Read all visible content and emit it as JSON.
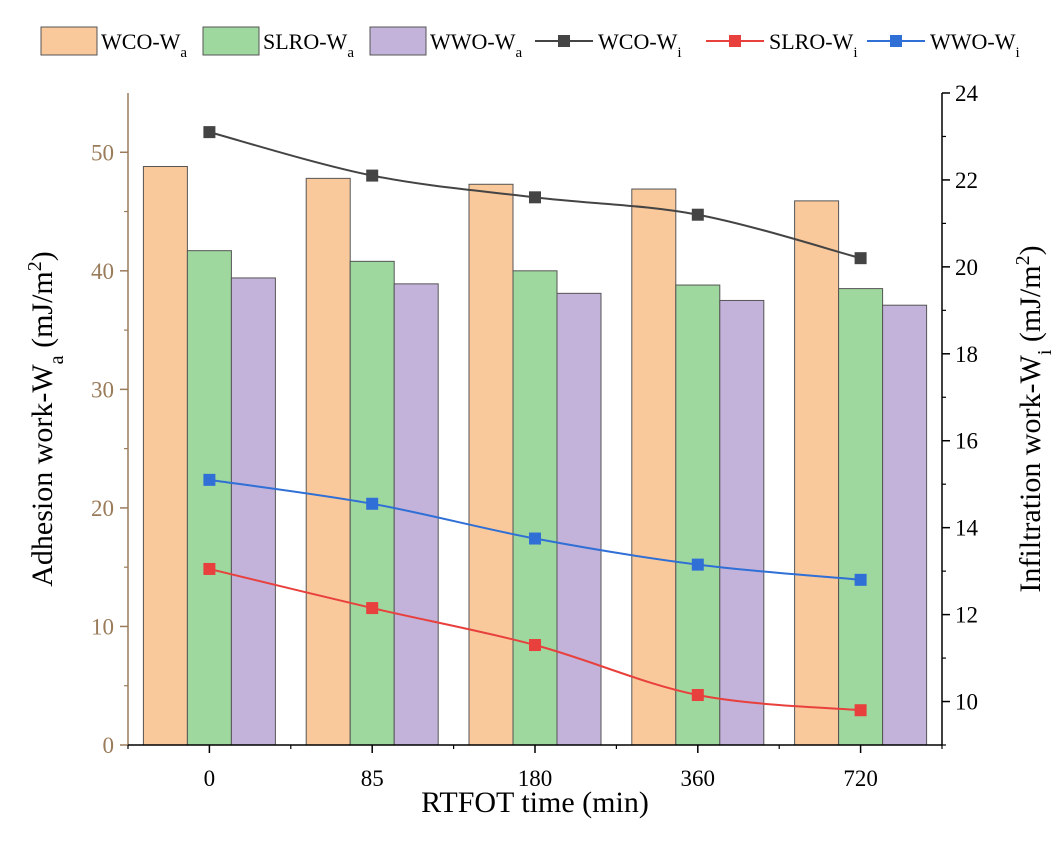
{
  "chart_data": {
    "type": "bar",
    "title": "",
    "categories": [
      "0",
      "85",
      "180",
      "360",
      "720"
    ],
    "xlabel": "RTFOT time (min)",
    "ylabel_left": {
      "text": "Adhesion work-W",
      "sub": "a",
      "unit_open": " (mJ/m",
      "sup": "2",
      "unit_close": ")"
    },
    "ylabel_right": {
      "text": "Infiltration work-W",
      "sub": "i",
      "unit_open": " (mJ/m",
      "sup": "2",
      "unit_close": ")"
    },
    "ylim_left": [
      0,
      55
    ],
    "yticks_left": [
      0,
      10,
      20,
      30,
      40,
      50
    ],
    "ylim_right": [
      9,
      24
    ],
    "yticks_right": [
      10,
      12,
      14,
      16,
      18,
      20,
      22,
      24
    ],
    "bar_series": [
      {
        "name": "WCO-W",
        "sub": "a",
        "color": "#f9c89b",
        "values": [
          48.8,
          47.8,
          47.3,
          46.9,
          45.9
        ]
      },
      {
        "name": "SLRO-W",
        "sub": "a",
        "color": "#9fd89e",
        "values": [
          41.7,
          40.8,
          40.0,
          38.8,
          38.5
        ]
      },
      {
        "name": "WWO-W",
        "sub": "a",
        "color": "#c3b2d9",
        "values": [
          39.4,
          38.9,
          38.1,
          37.5,
          37.1
        ]
      }
    ],
    "line_series": [
      {
        "name": "WCO-W",
        "sub": "i",
        "color": "#444444",
        "values": [
          23.1,
          22.1,
          21.6,
          21.2,
          20.2
        ]
      },
      {
        "name": "SLRO-W",
        "sub": "i",
        "color": "#e8403d",
        "values": [
          13.05,
          12.15,
          11.3,
          10.15,
          9.8
        ]
      },
      {
        "name": "WWO-W",
        "sub": "i",
        "color": "#2f6fd6",
        "values": [
          15.1,
          14.55,
          13.75,
          13.15,
          12.8
        ]
      }
    ],
    "legend_position": "top",
    "grid": false
  }
}
